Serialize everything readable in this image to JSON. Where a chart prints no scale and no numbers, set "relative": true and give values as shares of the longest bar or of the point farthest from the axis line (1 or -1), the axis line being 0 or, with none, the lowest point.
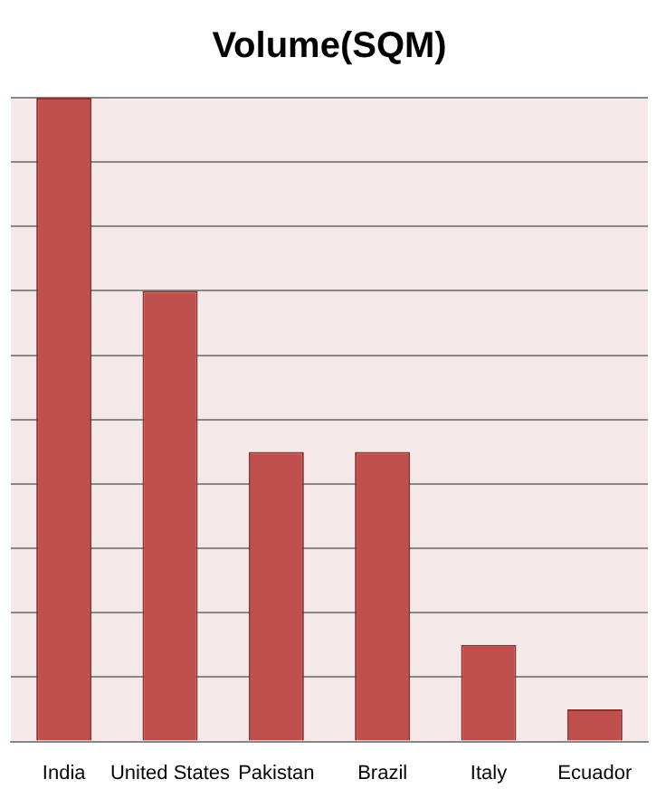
{
  "chart_data": {
    "type": "bar",
    "title": "Volume(SQM)",
    "categories": [
      "India",
      "United States",
      "Pakistan",
      "Brazil",
      "Italy",
      "Ecuador"
    ],
    "values": [
      1,
      0.7,
      0.45,
      0.45,
      0.15,
      0.05
    ],
    "color": "#c0504d",
    "relative": true,
    "grid": "y",
    "legend": false
  }
}
